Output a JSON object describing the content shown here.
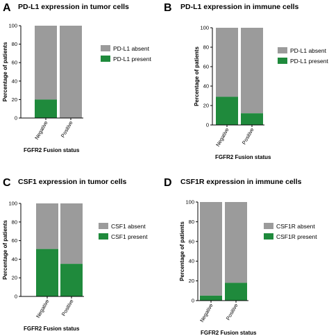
{
  "colors": {
    "absent": "#9b9b9b",
    "present": "#1f8a3c"
  },
  "chart_data": [
    {
      "type": "bar",
      "stacked": true,
      "panel": "A",
      "title": "PD-L1 expression in tumor cells",
      "categories": [
        "Negative",
        "Positive"
      ],
      "series": [
        {
          "name": "PD-L1 present",
          "values": [
            20,
            0
          ]
        },
        {
          "name": "PD-L1 absent",
          "values": [
            80,
            100
          ]
        }
      ],
      "xlabel": "FGFR2 Fusion status",
      "ylabel": "Percentage of patients",
      "ylim": [
        0,
        100
      ],
      "yticks": [
        0,
        20,
        40,
        60,
        80,
        100
      ],
      "legend": "right"
    },
    {
      "type": "bar",
      "stacked": true,
      "panel": "B",
      "title": "PD-L1 expression in immune cells",
      "categories": [
        "Negative",
        "Positive"
      ],
      "series": [
        {
          "name": "PD-L1 present",
          "values": [
            29,
            12
          ]
        },
        {
          "name": "PD-L1 absent",
          "values": [
            71,
            88
          ]
        }
      ],
      "xlabel": "FGFR2 Fusion status",
      "ylabel": "Percentage of patients",
      "ylim": [
        0,
        100
      ],
      "yticks": [
        0,
        20,
        40,
        60,
        80,
        100
      ],
      "legend": "right"
    },
    {
      "type": "bar",
      "stacked": true,
      "panel": "C",
      "title": "CSF1 expression in tumor cells",
      "categories": [
        "Negative",
        "Positive"
      ],
      "series": [
        {
          "name": "CSF1 present",
          "values": [
            51,
            35
          ]
        },
        {
          "name": "CSF1 absent",
          "values": [
            49,
            65
          ]
        }
      ],
      "xlabel": "FGFR2 Fusion status",
      "ylabel": "Percentage of patients",
      "ylim": [
        0,
        100
      ],
      "yticks": [
        0,
        20,
        40,
        60,
        80,
        100
      ],
      "legend": "right"
    },
    {
      "type": "bar",
      "stacked": true,
      "panel": "D",
      "title": "CSF1R expression in immune cells",
      "categories": [
        "Negative",
        "Positive"
      ],
      "series": [
        {
          "name": "CSF1R present",
          "values": [
            5,
            18
          ]
        },
        {
          "name": "CSF1R absent",
          "values": [
            95,
            82
          ]
        }
      ],
      "xlabel": "FGFR2 Fusion status",
      "ylabel": "Percentage of patients",
      "ylim": [
        0,
        100
      ],
      "yticks": [
        0,
        20,
        40,
        60,
        80,
        100
      ],
      "legend": "right"
    }
  ]
}
